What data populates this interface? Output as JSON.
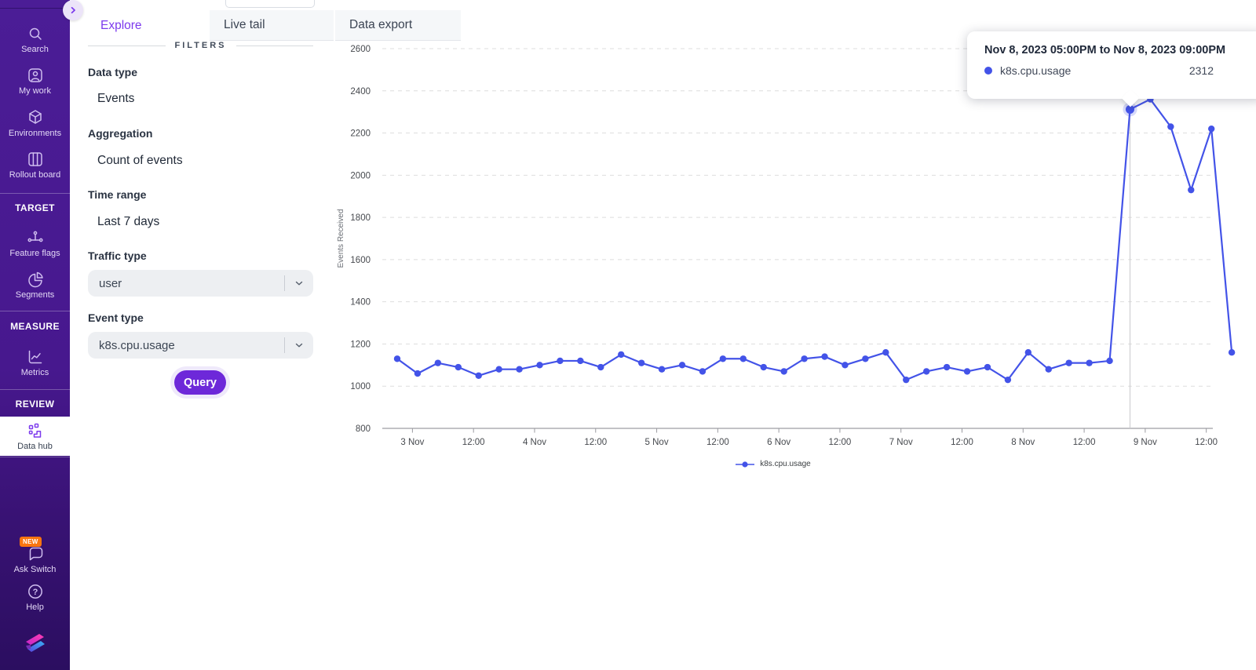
{
  "sidebar": {
    "items": [
      {
        "label": "Search"
      },
      {
        "label": "My work"
      },
      {
        "label": "Environments"
      },
      {
        "label": "Rollout board"
      }
    ],
    "sections": [
      {
        "header": "TARGET",
        "items": [
          {
            "label": "Feature flags"
          },
          {
            "label": "Segments"
          }
        ]
      },
      {
        "header": "MEASURE",
        "items": [
          {
            "label": "Metrics"
          }
        ]
      },
      {
        "header": "REVIEW",
        "items": [
          {
            "label": "Data hub",
            "active": true
          }
        ]
      }
    ],
    "footer_items": [
      {
        "label": "Ask Switch",
        "badge": "NEW"
      },
      {
        "label": "Help"
      }
    ]
  },
  "tabs": [
    {
      "label": "Explore",
      "active": true
    },
    {
      "label": "Live tail",
      "active": false
    },
    {
      "label": "Data export",
      "active": false
    }
  ],
  "filters": {
    "heading": "FILTERS",
    "data_type": {
      "label": "Data type",
      "value": "Events"
    },
    "aggregation": {
      "label": "Aggregation",
      "value": "Count of events"
    },
    "time_range": {
      "label": "Time range",
      "value": "Last 7 days"
    },
    "traffic_type": {
      "label": "Traffic type",
      "value": "user"
    },
    "event_type": {
      "label": "Event type",
      "value": "k8s.cpu.usage"
    },
    "query_label": "Query"
  },
  "tooltip": {
    "title": "Nov 8, 2023 05:00PM to Nov 8, 2023 09:00PM",
    "series": "k8s.cpu.usage",
    "value": "2312"
  },
  "chart_data": {
    "type": "line",
    "title": "",
    "xlabel": "",
    "ylabel": "Events Received",
    "ylim": [
      800,
      2600
    ],
    "y_ticks": [
      800,
      1000,
      1200,
      1400,
      1600,
      1800,
      2000,
      2200,
      2400,
      2600
    ],
    "x_tick_labels": [
      "3 Nov",
      "12:00",
      "4 Nov",
      "12:00",
      "5 Nov",
      "12:00",
      "6 Nov",
      "12:00",
      "7 Nov",
      "12:00",
      "8 Nov",
      "12:00",
      "9 Nov",
      "12:00"
    ],
    "bucket_interval": "4h",
    "grid": "dashed-horizontal",
    "legend_position": "bottom-center",
    "series": [
      {
        "name": "k8s.cpu.usage",
        "color": "#4353e8",
        "values": [
          1130,
          1060,
          1110,
          1090,
          1050,
          1080,
          1080,
          1100,
          1120,
          1120,
          1090,
          1150,
          1110,
          1080,
          1100,
          1070,
          1130,
          1130,
          1090,
          1070,
          1130,
          1140,
          1100,
          1130,
          1160,
          1030,
          1070,
          1090,
          1070,
          1090,
          1030,
          1160,
          1080,
          1110,
          1110,
          1120,
          2312,
          2360,
          2230,
          1930,
          2220,
          1160
        ]
      }
    ],
    "highlight": {
      "index": 36,
      "value": 2312
    }
  },
  "colors": {
    "accent": "#7c3aed",
    "line": "#4353e8",
    "badge": "#f9750f",
    "query_button": "#6d28d9"
  }
}
